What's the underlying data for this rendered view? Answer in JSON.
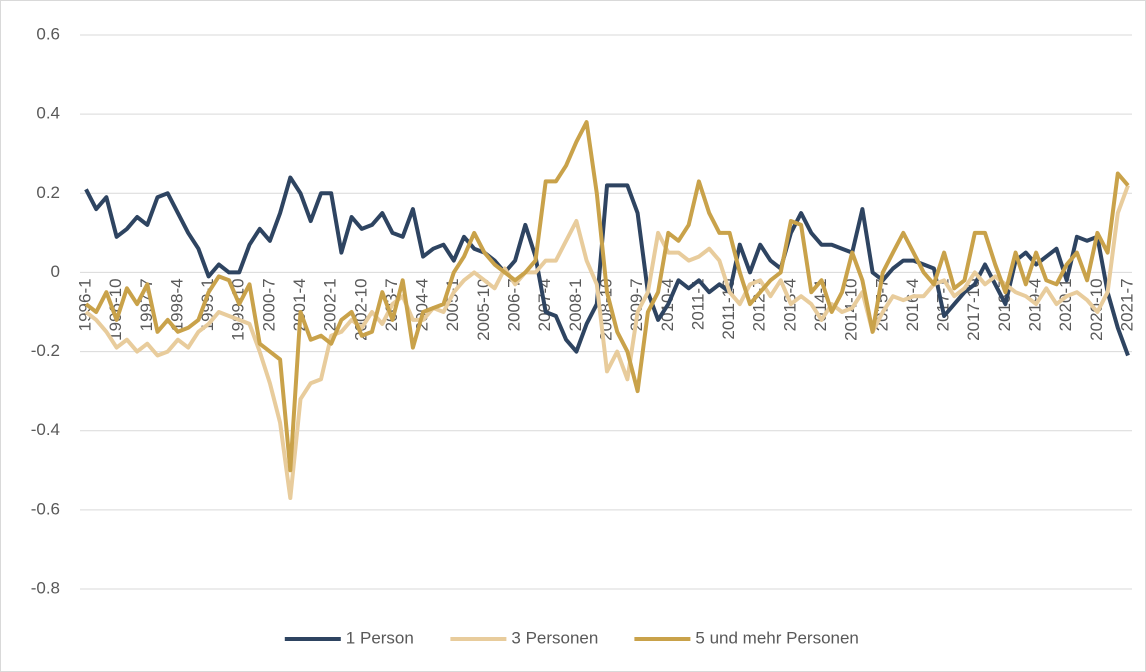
{
  "chart_data": {
    "type": "line",
    "categories": [
      "1996-1",
      null,
      null,
      "1996-10",
      null,
      null,
      "1997-7",
      null,
      null,
      "1998-4",
      null,
      null,
      "1999-1",
      null,
      null,
      "1999-10",
      null,
      null,
      "2000-7",
      null,
      null,
      "2001-4",
      null,
      null,
      "2002-1",
      null,
      null,
      "2002-10",
      null,
      null,
      "2003-7",
      null,
      null,
      "2004-4",
      null,
      null,
      "2005-1",
      null,
      null,
      "2005-10",
      null,
      null,
      "2006-7",
      null,
      null,
      "2007-4",
      null,
      null,
      "2008-1",
      null,
      null,
      "2008-10",
      null,
      null,
      "2009-7",
      null,
      null,
      "2010-4",
      null,
      null,
      "2011-1",
      null,
      null,
      "2011-10",
      null,
      null,
      "2012-7",
      null,
      null,
      "2013-4",
      null,
      null,
      "2014-1",
      null,
      null,
      "2014-10",
      null,
      null,
      "2015-7",
      null,
      null,
      "2016-4",
      null,
      null,
      "2017-1",
      null,
      null,
      "2017-10",
      null,
      null,
      "2018-7",
      null,
      null,
      "2019-4",
      null,
      null,
      "2020-1",
      null,
      null,
      "2020-10",
      null,
      null,
      "2021-7"
    ],
    "series": [
      {
        "name": "1 Person",
        "color": "#2e4461",
        "values": [
          0.21,
          0.16,
          0.19,
          0.09,
          0.11,
          0.14,
          0.12,
          0.19,
          0.2,
          0.15,
          0.1,
          0.06,
          -0.01,
          0.02,
          0.0,
          0.0,
          0.07,
          0.11,
          0.08,
          0.15,
          0.24,
          0.2,
          0.13,
          0.2,
          0.2,
          0.05,
          0.14,
          0.11,
          0.12,
          0.15,
          0.1,
          0.09,
          0.16,
          0.04,
          0.06,
          0.07,
          0.03,
          0.09,
          0.06,
          0.05,
          0.03,
          0.0,
          0.03,
          0.12,
          0.04,
          -0.1,
          -0.11,
          -0.17,
          -0.2,
          -0.13,
          -0.08,
          0.22,
          0.22,
          0.22,
          0.15,
          -0.05,
          -0.12,
          -0.08,
          -0.02,
          -0.04,
          -0.02,
          -0.05,
          -0.03,
          -0.05,
          0.07,
          0.0,
          0.07,
          0.03,
          0.01,
          0.1,
          0.15,
          0.1,
          0.07,
          0.07,
          0.06,
          0.05,
          0.16,
          0.0,
          -0.02,
          0.01,
          0.03,
          0.03,
          0.02,
          0.01,
          -0.11,
          -0.08,
          -0.05,
          -0.03,
          0.02,
          -0.03,
          -0.08,
          0.03,
          0.05,
          0.02,
          0.04,
          0.06,
          -0.02,
          0.09,
          0.08,
          0.09,
          -0.05,
          -0.14,
          -0.21
        ]
      },
      {
        "name": "3 Personen",
        "color": "#e8cc9c",
        "values": [
          -0.1,
          -0.12,
          -0.15,
          -0.19,
          -0.17,
          -0.2,
          -0.18,
          -0.21,
          -0.2,
          -0.17,
          -0.19,
          -0.15,
          -0.13,
          -0.1,
          -0.11,
          -0.12,
          -0.13,
          -0.2,
          -0.28,
          -0.38,
          -0.57,
          -0.32,
          -0.28,
          -0.27,
          -0.16,
          -0.15,
          -0.12,
          -0.14,
          -0.1,
          -0.13,
          -0.08,
          -0.06,
          -0.12,
          -0.12,
          -0.09,
          -0.1,
          -0.05,
          -0.02,
          0.0,
          -0.02,
          -0.04,
          0.01,
          -0.03,
          0.0,
          0.0,
          0.03,
          0.03,
          0.08,
          0.13,
          0.03,
          -0.03,
          -0.25,
          -0.2,
          -0.27,
          -0.1,
          -0.05,
          0.1,
          0.05,
          0.05,
          0.03,
          0.04,
          0.06,
          0.03,
          -0.05,
          -0.08,
          -0.03,
          -0.02,
          -0.06,
          -0.02,
          -0.08,
          -0.06,
          -0.08,
          -0.12,
          -0.08,
          -0.1,
          -0.09,
          -0.05,
          -0.15,
          -0.1,
          -0.06,
          -0.07,
          -0.06,
          -0.06,
          -0.03,
          -0.02,
          -0.06,
          -0.04,
          0.0,
          -0.03,
          -0.01,
          -0.03,
          -0.05,
          -0.06,
          -0.08,
          -0.04,
          -0.08,
          -0.06,
          -0.05,
          -0.07,
          -0.1,
          -0.05,
          0.15,
          0.22
        ]
      },
      {
        "name": "5 und mehr Personen",
        "color": "#c9a24a",
        "values": [
          -0.08,
          -0.1,
          -0.05,
          -0.12,
          -0.04,
          -0.08,
          -0.03,
          -0.15,
          -0.12,
          -0.15,
          -0.14,
          -0.12,
          -0.05,
          -0.01,
          -0.02,
          -0.08,
          -0.03,
          -0.18,
          -0.2,
          -0.22,
          -0.5,
          -0.1,
          -0.17,
          -0.16,
          -0.18,
          -0.12,
          -0.1,
          -0.16,
          -0.15,
          -0.05,
          -0.12,
          -0.02,
          -0.19,
          -0.1,
          -0.09,
          -0.08,
          0.0,
          0.04,
          0.1,
          0.05,
          0.02,
          0.0,
          -0.02,
          0.0,
          0.03,
          0.23,
          0.23,
          0.27,
          0.33,
          0.38,
          0.2,
          -0.05,
          -0.15,
          -0.2,
          -0.3,
          -0.1,
          -0.05,
          0.1,
          0.08,
          0.12,
          0.23,
          0.15,
          0.1,
          0.1,
          0.0,
          -0.08,
          -0.05,
          -0.02,
          0.0,
          0.13,
          0.12,
          -0.05,
          -0.02,
          -0.1,
          -0.05,
          0.05,
          -0.02,
          -0.15,
          0.0,
          0.05,
          0.1,
          0.05,
          0.0,
          -0.03,
          0.05,
          -0.04,
          -0.02,
          0.1,
          0.1,
          0.02,
          -0.05,
          0.05,
          -0.03,
          0.05,
          -0.02,
          -0.03,
          0.02,
          0.05,
          -0.02,
          0.1,
          0.05,
          0.25,
          0.22
        ]
      }
    ],
    "ylim": [
      -0.8,
      0.6
    ],
    "yticks": [
      -0.8,
      -0.6,
      -0.4,
      -0.2,
      0,
      0.2,
      0.4,
      0.6
    ],
    "grid": true,
    "legend": "bottom"
  }
}
